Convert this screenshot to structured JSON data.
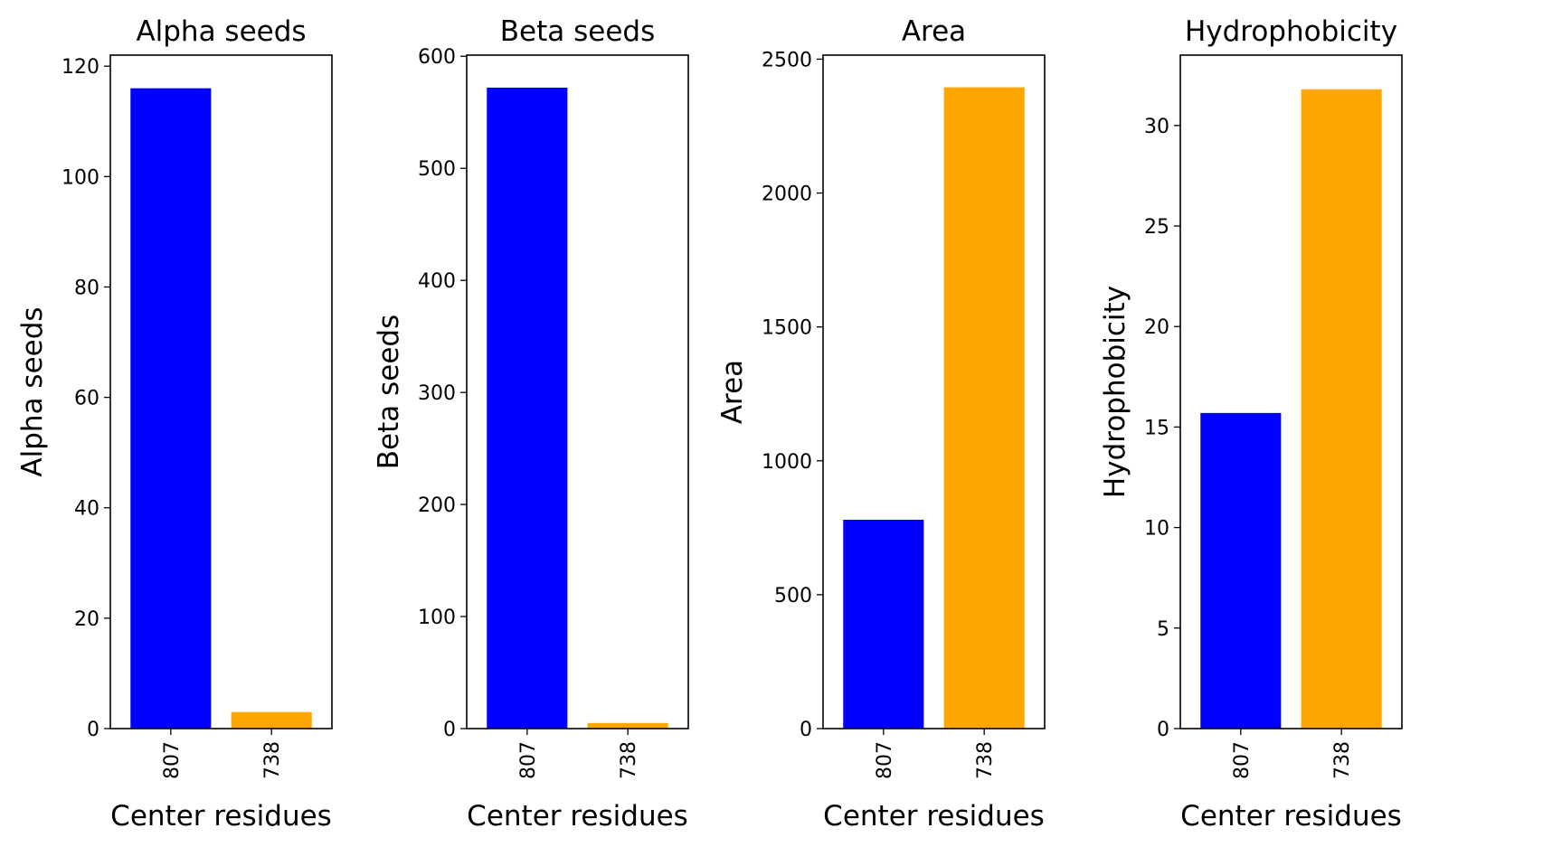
{
  "chart_data": [
    {
      "type": "bar",
      "title": "Alpha seeds",
      "xlabel": "Center residues",
      "ylabel": "Alpha seeds",
      "categories": [
        "807",
        "738"
      ],
      "values": [
        116,
        3
      ],
      "colors": [
        "#0000ff",
        "#ffa500"
      ],
      "ylim": [
        0,
        122
      ],
      "yticks": [
        0,
        20,
        40,
        60,
        80,
        100,
        120
      ],
      "grid": false
    },
    {
      "type": "bar",
      "title": "Beta seeds",
      "xlabel": "Center residues",
      "ylabel": "Beta seeds",
      "categories": [
        "807",
        "738"
      ],
      "values": [
        572,
        5
      ],
      "colors": [
        "#0000ff",
        "#ffa500"
      ],
      "ylim": [
        0,
        601
      ],
      "yticks": [
        0,
        100,
        200,
        300,
        400,
        500,
        600
      ],
      "grid": false
    },
    {
      "type": "bar",
      "title": "Area",
      "xlabel": "Center residues",
      "ylabel": "Area",
      "categories": [
        "807",
        "738"
      ],
      "values": [
        780,
        2395
      ],
      "colors": [
        "#0000ff",
        "#ffa500"
      ],
      "ylim": [
        0,
        2515
      ],
      "yticks": [
        0,
        500,
        1000,
        1500,
        2000,
        2500
      ],
      "grid": false
    },
    {
      "type": "bar",
      "title": "Hydrophobicity",
      "xlabel": "Center residues",
      "ylabel": "Hydrophobicity",
      "categories": [
        "807",
        "738"
      ],
      "values": [
        15.7,
        31.8
      ],
      "colors": [
        "#0000ff",
        "#ffa500"
      ],
      "ylim": [
        0,
        33.5
      ],
      "yticks": [
        0,
        5,
        10,
        15,
        20,
        25,
        30
      ],
      "grid": false
    }
  ]
}
